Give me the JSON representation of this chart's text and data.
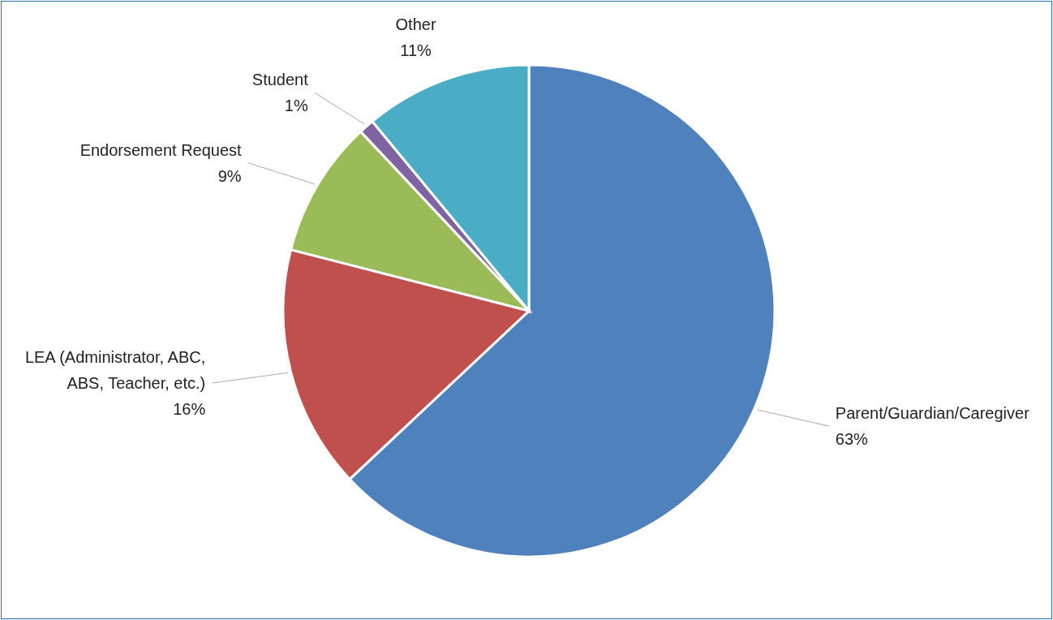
{
  "chart_data": {
    "type": "pie",
    "categories": [
      "Parent/Guardian/Caregiver",
      "LEA (Administrator, ABC, ABS, Teacher, etc.)",
      "Endorsement Request",
      "Student",
      "Other"
    ],
    "values": [
      63,
      16,
      9,
      1,
      11
    ],
    "value_labels": [
      "63%",
      "16%",
      "9%",
      "1%",
      "11%"
    ],
    "colors": [
      "#4f81bd",
      "#c0504d",
      "#9bbb59",
      "#8064a2",
      "#4bacc6"
    ]
  }
}
